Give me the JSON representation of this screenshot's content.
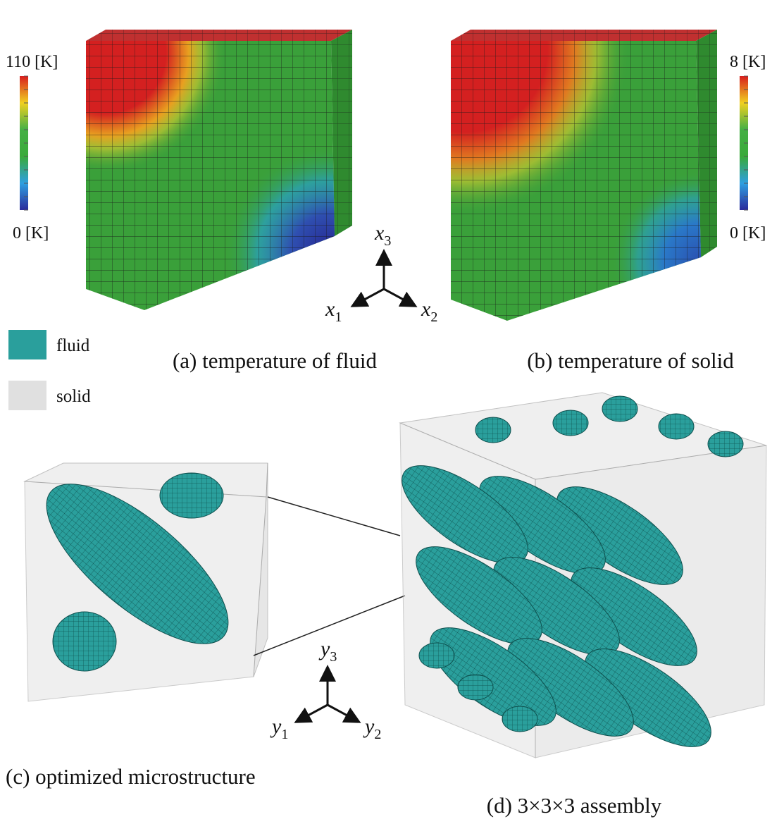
{
  "panels": [
    {
      "caption": "(a) temperature of fluid",
      "colorbar": {
        "max": "110 [K]",
        "min": "0 [K]"
      }
    },
    {
      "caption": "(b) temperature of solid",
      "colorbar": {
        "max": "8 [K]",
        "min": "0 [K]"
      }
    },
    {
      "caption": "(c) optimized microstructure"
    },
    {
      "caption": "(d)  3×3×3  assembly"
    }
  ],
  "legend": [
    {
      "label": "fluid",
      "color": "#2a9f9c"
    },
    {
      "label": "solid",
      "color": "#e0e0e0"
    }
  ],
  "macro_axes": [
    {
      "base": "x",
      "sub": "1"
    },
    {
      "base": "x",
      "sub": "2"
    },
    {
      "base": "x",
      "sub": "3"
    }
  ],
  "micro_axes": [
    {
      "base": "y",
      "sub": "1"
    },
    {
      "base": "y",
      "sub": "2"
    },
    {
      "base": "y",
      "sub": "3"
    }
  ]
}
